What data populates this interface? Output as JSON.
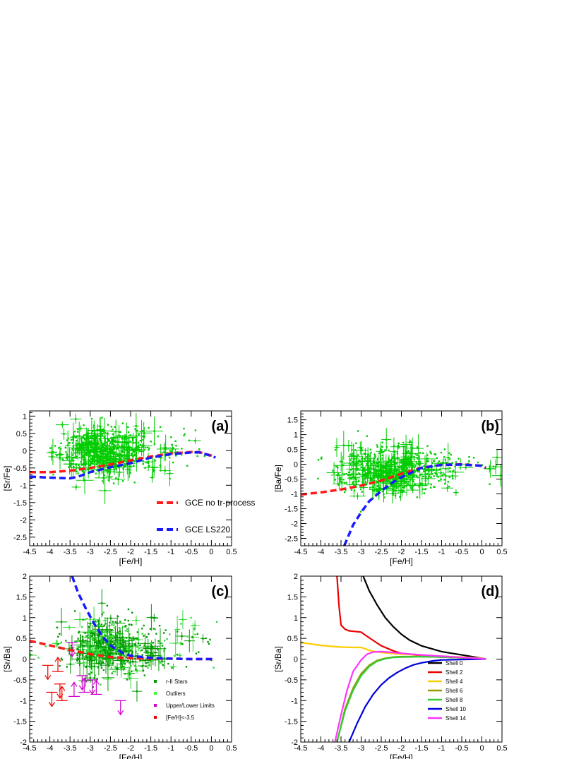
{
  "chart_data": [
    {
      "id": "a",
      "type": "scatter",
      "panel_label": "(a)",
      "xlabel": "[Fe/H]",
      "ylabel": "[Sr/Fe]",
      "xlim": [
        -4.5,
        0.5
      ],
      "ylim": [
        -2.75,
        1.15
      ],
      "xticks": [
        -4.5,
        -4,
        -3.5,
        -3,
        -2.5,
        -2,
        -1.5,
        -1,
        -0.5,
        0,
        0.5
      ],
      "xtick_labels": [
        "-4.5",
        "-4",
        "-3.5",
        "-3",
        "-2.5",
        "-2",
        "-1.5",
        "-1",
        "-0.5",
        "0",
        "0.5"
      ],
      "yticks": [
        -2.5,
        -2,
        -1.5,
        -1,
        -0.5,
        0,
        0.5,
        1
      ],
      "ytick_labels": [
        "-2.5",
        "-2",
        "-1.5",
        "-1",
        "-0.5",
        "0",
        "0.5",
        "1"
      ],
      "legend_position": "bottom-right",
      "scatter_color": "#00cc00",
      "point_cloud": {
        "center_x": -2.8,
        "spread_x": 0.45,
        "center_y": 0.0,
        "spread_y": 0.35,
        "count": 700
      },
      "series": [
        {
          "name": "GCE no tr-process",
          "color": "#ff1a1a",
          "style": "dashed",
          "x": [
            -4.5,
            -4.0,
            -3.5,
            -3.0,
            -2.5,
            -2.0,
            -1.5,
            -1.0,
            -0.5,
            -0.3,
            0.0,
            0.1
          ],
          "y": [
            -0.62,
            -0.62,
            -0.58,
            -0.5,
            -0.4,
            -0.28,
            -0.17,
            -0.08,
            -0.04,
            -0.04,
            -0.14,
            -0.2
          ]
        },
        {
          "name": "GCE LS220",
          "color": "#1a1aff",
          "style": "dashed",
          "x": [
            -4.5,
            -4.0,
            -3.5,
            -3.3,
            -3.0,
            -2.5,
            -2.0,
            -1.5,
            -1.0,
            -0.5,
            -0.3,
            0.0,
            0.1
          ],
          "y": [
            -0.75,
            -0.78,
            -0.8,
            -0.75,
            -0.62,
            -0.48,
            -0.36,
            -0.2,
            -0.1,
            -0.05,
            -0.05,
            -0.15,
            -0.2
          ]
        }
      ]
    },
    {
      "id": "b",
      "type": "scatter",
      "panel_label": "(b)",
      "xlabel": "[Fe/H]",
      "ylabel": "[Ba/Fe]",
      "xlim": [
        -4.5,
        0.5
      ],
      "ylim": [
        -2.75,
        1.8
      ],
      "xticks": [
        -4.5,
        -4,
        -3.5,
        -3,
        -2.5,
        -2,
        -1.5,
        -1,
        -0.5,
        0,
        0.5
      ],
      "xtick_labels": [
        "-4.5",
        "-4",
        "-3.5",
        "-3",
        "-2.5",
        "-2",
        "-1.5",
        "-1",
        "-0.5",
        "0",
        "0.5"
      ],
      "yticks": [
        -2.5,
        -2,
        -1.5,
        -1,
        -0.5,
        0,
        0.5,
        1,
        1.5
      ],
      "ytick_labels": [
        "-2.5",
        "-2",
        "-1.5",
        "-1",
        "-0.5",
        "0",
        "0.5",
        "1",
        "1.5"
      ],
      "scatter_color": "#00cc00",
      "point_cloud": {
        "center_x": -2.4,
        "spread_x": 0.6,
        "center_y": -0.2,
        "spread_y": 0.4,
        "count": 700
      },
      "series": [
        {
          "color": "#ff1a1a",
          "style": "dashed",
          "x": [
            -4.5,
            -4.0,
            -3.5,
            -3.0,
            -2.5,
            -2.0,
            -1.5,
            -1.0,
            -0.5,
            0.0,
            0.1
          ],
          "y": [
            -1.02,
            -0.95,
            -0.85,
            -0.72,
            -0.55,
            -0.32,
            -0.12,
            -0.02,
            0.0,
            -0.05,
            -0.12
          ]
        },
        {
          "color": "#1a1aff",
          "style": "dashed",
          "x": [
            -3.42,
            -3.2,
            -3.0,
            -2.8,
            -2.5,
            -2.2,
            -2.0,
            -1.5,
            -1.0,
            -0.5,
            0.0,
            0.1
          ],
          "y": [
            -2.75,
            -2.05,
            -1.62,
            -1.25,
            -0.9,
            -0.6,
            -0.44,
            -0.12,
            -0.02,
            -0.01,
            -0.05,
            -0.12
          ]
        }
      ]
    },
    {
      "id": "c",
      "type": "scatter",
      "panel_label": "(c)",
      "xlabel": "[Fe/H]",
      "ylabel": "[Sr/Ba]",
      "xlim": [
        -4.5,
        0.5
      ],
      "ylim": [
        -2,
        2
      ],
      "xticks": [
        -4.5,
        -4,
        -3.5,
        -3,
        -2.5,
        -2,
        -1.5,
        -1,
        -0.5,
        0,
        0.5
      ],
      "xtick_labels": [
        "-4.5",
        "-4",
        "-3.5",
        "-3",
        "-2.5",
        "-2",
        "-1.5",
        "-1",
        "-0.5",
        "0",
        "0.5"
      ],
      "yticks": [
        -2,
        -1.5,
        -1,
        -0.5,
        0,
        0.5,
        1,
        1.5,
        2
      ],
      "ytick_labels": [
        "-2",
        "-1.5",
        "-1",
        "-0.5",
        "0",
        "0.5",
        "1",
        "1.5",
        "2"
      ],
      "legend_position": "bottom-right",
      "legend": [
        {
          "label": "r-II Stars",
          "color": "#009900"
        },
        {
          "label": "Outliers",
          "color": "#33ff33"
        },
        {
          "label": "Upper/Lower Limits",
          "color": "#cc00cc"
        },
        {
          "label": "[Fe/H]<-3.5",
          "color": "#ee0000"
        }
      ],
      "point_cloud": {
        "center_x": -2.6,
        "spread_x": 0.5,
        "center_y": 0.25,
        "spread_y": 0.35,
        "count": 650
      },
      "series": [
        {
          "color": "#ff1a1a",
          "style": "dashed",
          "x": [
            -4.5,
            -4.0,
            -3.5,
            -3.0,
            -2.5,
            -2.0,
            -1.5,
            -1.0,
            -0.5,
            0.0,
            0.1
          ],
          "y": [
            0.44,
            0.33,
            0.22,
            0.12,
            0.05,
            0.02,
            0.01,
            0.01,
            0.0,
            0.0,
            0.0
          ]
        },
        {
          "color": "#1a1aff",
          "style": "dashed",
          "x": [
            -3.45,
            -3.3,
            -3.1,
            -2.9,
            -2.7,
            -2.5,
            -2.2,
            -2.0,
            -1.5,
            -1.0,
            -0.5,
            0.0,
            0.1
          ],
          "y": [
            2.0,
            1.6,
            1.2,
            0.85,
            0.55,
            0.33,
            0.15,
            0.08,
            0.03,
            0.01,
            0.0,
            0.0,
            0.0
          ]
        }
      ],
      "limit_points": [
        {
          "x": -4.05,
          "y": -0.15,
          "dir": "down",
          "color": "#ee0000"
        },
        {
          "x": -3.95,
          "y": -0.8,
          "dir": "down",
          "color": "#ee0000"
        },
        {
          "x": -3.8,
          "y": -0.3,
          "dir": "up",
          "color": "#ee0000"
        },
        {
          "x": -3.75,
          "y": -0.6,
          "dir": "down",
          "color": "#ee0000"
        },
        {
          "x": -3.7,
          "y": -1.0,
          "dir": "up",
          "color": "#ee0000"
        },
        {
          "x": -3.45,
          "y": 0.4,
          "dir": "down",
          "color": "#cc00cc"
        },
        {
          "x": -3.4,
          "y": -0.9,
          "dir": "up",
          "color": "#cc00cc"
        },
        {
          "x": -3.2,
          "y": -0.4,
          "dir": "down",
          "color": "#cc00cc"
        },
        {
          "x": -3.15,
          "y": -0.8,
          "dir": "up",
          "color": "#cc00cc"
        },
        {
          "x": -2.95,
          "y": -0.5,
          "dir": "down",
          "color": "#cc00cc"
        },
        {
          "x": -2.85,
          "y": -0.85,
          "dir": "up",
          "color": "#cc00cc"
        },
        {
          "x": -2.25,
          "y": -1.0,
          "dir": "down",
          "color": "#cc00cc"
        }
      ]
    },
    {
      "id": "d",
      "type": "line",
      "panel_label": "(d)",
      "xlabel": "[Fe/H]",
      "ylabel": "[Sr/Ba]",
      "xlim": [
        -4.5,
        0.5
      ],
      "ylim": [
        -2,
        2
      ],
      "xticks": [
        -4.5,
        -4,
        -3.5,
        -3,
        -2.5,
        -2,
        -1.5,
        -1,
        -0.5,
        0,
        0.5
      ],
      "xtick_labels": [
        "-4.5",
        "-4",
        "-3.5",
        "-3",
        "-2.5",
        "-2",
        "-1.5",
        "-1",
        "-0.5",
        "0",
        "0.5"
      ],
      "yticks": [
        -2,
        -1.5,
        -1,
        -0.5,
        0,
        0.5,
        1,
        1.5,
        2
      ],
      "ytick_labels": [
        "-2",
        "-1.5",
        "-1",
        "-0.5",
        "0",
        "0.5",
        "1",
        "1.5",
        "2"
      ],
      "legend_position": "bottom-right",
      "series": [
        {
          "name": "Shell 0",
          "color": "#000000",
          "x": [
            -2.95,
            -2.8,
            -2.6,
            -2.4,
            -2.2,
            -2.0,
            -1.8,
            -1.5,
            -1.0,
            -0.5,
            0.0,
            0.1
          ],
          "y": [
            2.0,
            1.65,
            1.3,
            1.0,
            0.78,
            0.6,
            0.46,
            0.32,
            0.18,
            0.1,
            0.02,
            0.0
          ]
        },
        {
          "name": "Shell 2",
          "color": "#ee0000",
          "x": [
            -3.6,
            -3.55,
            -3.5,
            -3.4,
            -3.3,
            -3.1,
            -3.0,
            -2.9,
            -2.7,
            -2.5,
            -2.2,
            -2.0,
            -1.5,
            -1.0,
            -0.5,
            0.0,
            0.1
          ],
          "y": [
            2.0,
            1.3,
            0.82,
            0.72,
            0.68,
            0.66,
            0.65,
            0.58,
            0.45,
            0.32,
            0.2,
            0.14,
            0.08,
            0.05,
            0.03,
            0.01,
            0.0
          ]
        },
        {
          "name": "Shell 4",
          "color": "#ffcc00",
          "x": [
            -4.5,
            -4.0,
            -3.5,
            -3.2,
            -3.0,
            -2.9,
            -2.8,
            -2.6,
            -2.4,
            -2.0,
            -1.5,
            -1.0,
            -0.5,
            0.0,
            0.1
          ],
          "y": [
            0.4,
            0.33,
            0.29,
            0.28,
            0.28,
            0.25,
            0.21,
            0.17,
            0.15,
            0.12,
            0.1,
            0.07,
            0.05,
            0.02,
            0.0
          ]
        },
        {
          "name": "Shell 6",
          "color": "#999900",
          "x": [
            -3.6,
            -3.4,
            -3.2,
            -3.0,
            -2.8,
            -2.6,
            -2.4,
            -2.2,
            -2.0,
            -1.5,
            -1.0,
            -0.5,
            0.0,
            0.1
          ],
          "y": [
            -2.0,
            -1.2,
            -0.7,
            -0.35,
            -0.15,
            -0.03,
            0.02,
            0.05,
            0.06,
            0.06,
            0.05,
            0.03,
            0.01,
            0.0
          ]
        },
        {
          "name": "Shell 8",
          "color": "#33cc33",
          "x": [
            -3.6,
            -3.4,
            -3.2,
            -3.0,
            -2.8,
            -2.6,
            -2.4,
            -2.2,
            -2.0,
            -1.5,
            -1.0,
            -0.5,
            0.0,
            0.1
          ],
          "y": [
            -2.0,
            -1.25,
            -0.75,
            -0.4,
            -0.18,
            -0.05,
            0.01,
            0.04,
            0.05,
            0.06,
            0.05,
            0.03,
            0.01,
            0.0
          ]
        },
        {
          "name": "Shell 10",
          "color": "#0000dd",
          "x": [
            -3.3,
            -3.1,
            -2.9,
            -2.7,
            -2.5,
            -2.3,
            -2.1,
            -1.9,
            -1.7,
            -1.5,
            -1.2,
            -1.0,
            -0.5,
            0.0,
            0.1
          ],
          "y": [
            -2.0,
            -1.55,
            -1.15,
            -0.85,
            -0.62,
            -0.45,
            -0.32,
            -0.22,
            -0.14,
            -0.09,
            -0.04,
            -0.02,
            -0.01,
            0.0,
            0.0
          ]
        },
        {
          "name": "Shell 14",
          "color": "#ff33ff",
          "x": [
            -3.65,
            -3.5,
            -3.35,
            -3.2,
            -3.0,
            -2.85,
            -2.7,
            -2.5,
            -2.2,
            -2.0,
            -1.5,
            -1.0,
            -0.5,
            0.0,
            0.1
          ],
          "y": [
            -2.0,
            -1.35,
            -0.75,
            -0.3,
            -0.02,
            0.12,
            0.17,
            0.18,
            0.16,
            0.14,
            0.1,
            0.07,
            0.04,
            0.01,
            0.0
          ]
        }
      ]
    }
  ],
  "legend_a": [
    {
      "label": "GCE no tr-process",
      "color": "#ff1a1a"
    },
    {
      "label": "GCE LS220",
      "color": "#1a1aff"
    }
  ]
}
